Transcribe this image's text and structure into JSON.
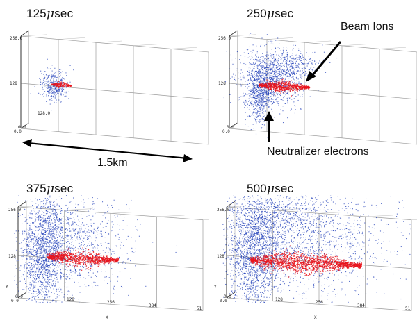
{
  "panels": [
    {
      "id": "p125",
      "time_value": "125",
      "time_unit_symbol": "μ",
      "time_unit": "sec",
      "ticks": {
        "y_top": "256.0",
        "y_mid": "128",
        "y_zero": "0.0",
        "z_zero": "0.0",
        "mid_label": "128.0"
      }
    },
    {
      "id": "p250",
      "time_value": "250",
      "time_unit_symbol": "μ",
      "time_unit": "sec",
      "ticks": {
        "y_top": "256.0",
        "y_mid": "128",
        "y_zero": "0.0",
        "z_zero": "0.0"
      }
    },
    {
      "id": "p375",
      "time_value": "375",
      "time_unit_symbol": "μ",
      "time_unit": "sec",
      "ticks": {
        "y_top": "256.0",
        "y_mid": "128",
        "y_zero": "0.0",
        "z_zero": "0.0",
        "y_axis": "Y",
        "x_axis": "X",
        "x_128": "128",
        "x_256": "256",
        "x_384": "384",
        "x_51": "51"
      }
    },
    {
      "id": "p500",
      "time_value": "500",
      "time_unit_symbol": "μ",
      "time_unit": "sec",
      "ticks": {
        "y_top": "256.0",
        "y_mid": "128",
        "y_zero": "0.0",
        "z_zero": "0.0",
        "y_axis": "Y",
        "x_axis": "X",
        "x_128": "128",
        "x_256": "256",
        "x_384": "384",
        "x_51": "51"
      }
    }
  ],
  "annotations": {
    "beam_ions": "Beam Ions",
    "neutralizer_electrons": "Neutralizer electrons",
    "scale_distance": "1.5km"
  },
  "colors": {
    "electrons": "#1f3db8",
    "ions": "#e8141c",
    "grid": "#9a9a9a",
    "frame": "#333333"
  }
}
